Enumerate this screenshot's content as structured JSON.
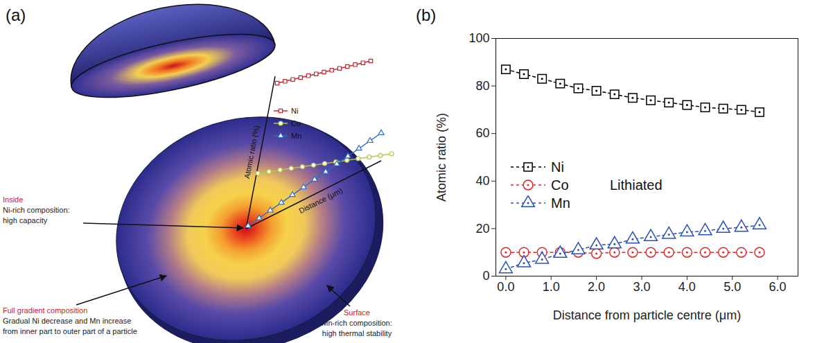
{
  "diagram": {
    "panel": "(a)",
    "inside": {
      "title": "Inside",
      "text": [
        "Ni-rich composition:",
        "high capacity"
      ]
    },
    "gradient": {
      "title": "Full gradient composition",
      "text": [
        "Gradual Ni decrease and Mn increase",
        "from inner part to outer part of a particle"
      ]
    },
    "surface": {
      "title": "Surface",
      "text": [
        "Mn-rich composition:",
        "high thermal stability"
      ]
    },
    "inset": {
      "y_label": "Atomic ratio (%)",
      "x_label": "Distance (μm)",
      "legend": [
        "Ni",
        "Co",
        "Mn"
      ]
    }
  },
  "chart_data": {
    "panel": "(b)",
    "type": "line",
    "x_label": "Distance from particle centre (μm)",
    "y_label": "Atomic ratio (%)",
    "x": [
      0,
      0.4,
      0.8,
      1.2,
      1.6,
      2.0,
      2.4,
      2.8,
      3.2,
      3.6,
      4.0,
      4.4,
      4.8,
      5.2,
      5.6
    ],
    "series": [
      {
        "name": "Ni",
        "color": "#000000",
        "marker": "square",
        "line_style": "dashed",
        "values": [
          87,
          85,
          83,
          81,
          79,
          78,
          76.5,
          75,
          74,
          73,
          72,
          71,
          70.5,
          70,
          69
        ]
      },
      {
        "name": "Co",
        "color": "#e0282c",
        "marker": "circle",
        "line_style": "dashed",
        "values": [
          10,
          10,
          10,
          10,
          10,
          9.5,
          10,
          10,
          10,
          10,
          10,
          10,
          10,
          10,
          10
        ]
      },
      {
        "name": "Mn",
        "color": "#2850b8",
        "marker": "triangle",
        "line_style": "dashed",
        "values": [
          3,
          5.5,
          7,
          9.5,
          11,
          13,
          13.5,
          15.5,
          16.5,
          17.5,
          18.5,
          19,
          20,
          20.5,
          21.5
        ]
      }
    ],
    "xlim": [
      -0.22,
      6.45
    ],
    "xticks": [
      0,
      1,
      2,
      3,
      4,
      5,
      6
    ],
    "ylim": [
      0,
      100
    ],
    "yticks": [
      0,
      20,
      40,
      60,
      80,
      100
    ],
    "grid": false,
    "legend": "left",
    "annotations": [
      "Lithiated"
    ]
  }
}
